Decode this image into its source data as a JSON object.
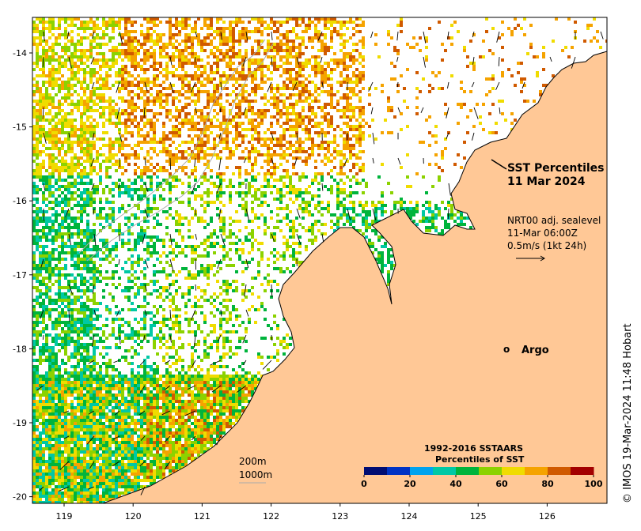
{
  "title": {
    "line1": "SST Percentiles",
    "line2": "11 Mar 2024"
  },
  "current_info": {
    "line1": "NRT00 adj. sealevel",
    "line2": "11-Mar 06:00Z",
    "line3": "0.5m/s (1kt 24h)"
  },
  "argo": {
    "marker": "o",
    "label": "Argo",
    "lon": 125.25,
    "lat": -18.0,
    "color": "#ff00ff"
  },
  "isobaths": {
    "label1": "200m",
    "label2": "1000m"
  },
  "colorbar": {
    "title1": "1992-2016 SSTAARS",
    "title2": "Percentiles of SST",
    "ticks": [
      "0",
      "20",
      "40",
      "60",
      "80",
      "100"
    ],
    "colors": [
      "#000d73",
      "#0033c4",
      "#00a3ee",
      "#00c8a5",
      "#00b43c",
      "#8cd200",
      "#f0dc00",
      "#f5a300",
      "#d05a00",
      "#a30000"
    ]
  },
  "credit": "© IMOS 19-Mar-2024 11:48 Hobart",
  "axes": {
    "lon_ticks": [
      "119",
      "120",
      "121",
      "122",
      "123",
      "124",
      "125",
      "126"
    ],
    "lat_ticks": [
      "-14",
      "-15",
      "-16",
      "-17",
      "-18",
      "-19",
      "-20"
    ],
    "lon_range": [
      118.6,
      126.7
    ],
    "lat_range": [
      -13.7,
      -20.1
    ]
  },
  "colors": {
    "land": "#ffc896",
    "coast": "#000000",
    "isobath": "#aaaaaa"
  }
}
